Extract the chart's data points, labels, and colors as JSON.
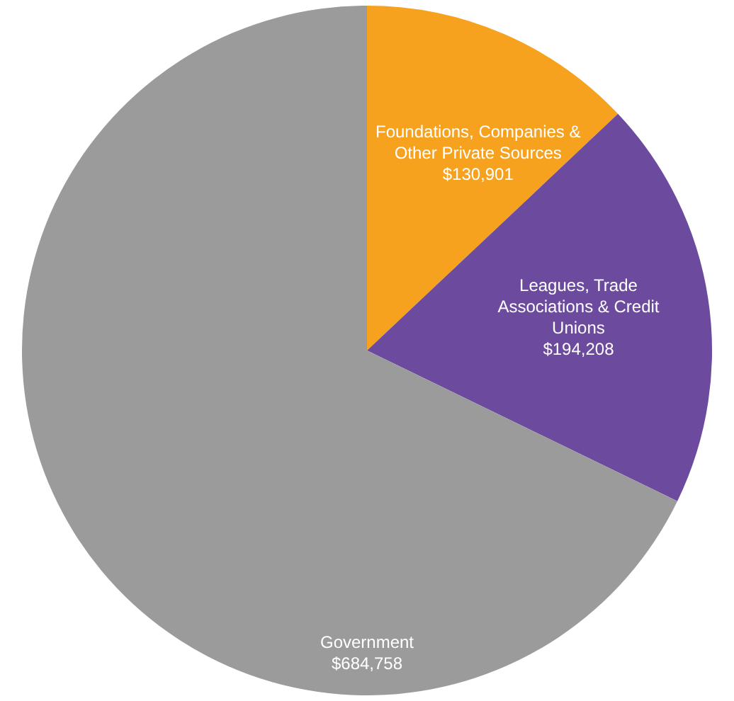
{
  "chart_data": {
    "type": "pie",
    "categories": [
      "Foundations, Companies & Other Private Sources",
      "Leagues, Trade Associations & Credit Unions",
      "Government"
    ],
    "values": [
      130901,
      194208,
      684758
    ],
    "value_labels": [
      "$130,901",
      "$194,208",
      "$684,758"
    ],
    "colors": [
      "#f6a21e",
      "#6c4a9e",
      "#9b9b9b"
    ],
    "legend": false
  }
}
